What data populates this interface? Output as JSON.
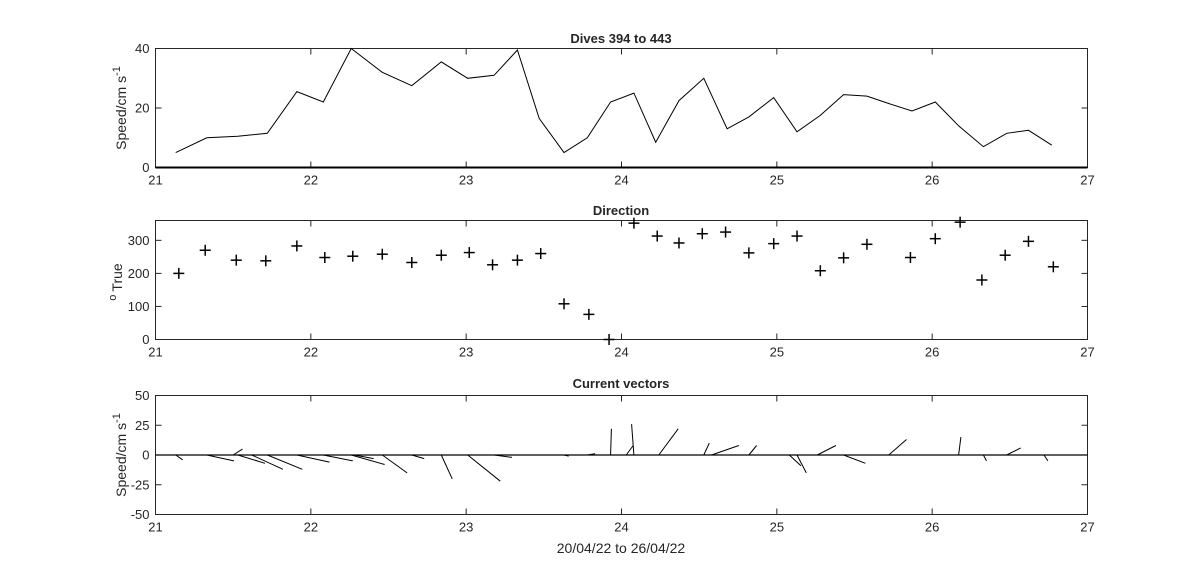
{
  "chart_data": [
    {
      "type": "line",
      "title": "Dives 394 to 443",
      "ylabel": "Speed/cm s",
      "ylabel_superscript": "-1",
      "xlim": [
        21,
        27
      ],
      "ylim": [
        0,
        40
      ],
      "xticks": [
        21,
        22,
        23,
        24,
        25,
        26,
        27
      ],
      "yticks": [
        0,
        20,
        40
      ],
      "x": [
        21.13,
        21.33,
        21.53,
        21.72,
        21.91,
        22.08,
        22.26,
        22.46,
        22.65,
        22.84,
        23.01,
        23.18,
        23.33,
        23.47,
        23.63,
        23.78,
        23.93,
        24.08,
        24.22,
        24.37,
        24.53,
        24.68,
        24.82,
        24.98,
        25.13,
        25.28,
        25.43,
        25.58,
        25.72,
        25.87,
        26.02,
        26.17,
        26.33,
        26.48,
        26.62,
        26.77
      ],
      "series": [
        {
          "values": [
            5,
            10,
            10.5,
            11.5,
            25.5,
            22,
            41,
            32,
            27.5,
            35.5,
            30,
            31,
            39.5,
            16.5,
            5,
            10,
            22,
            25,
            8.5,
            22.5,
            30,
            13,
            17,
            23.5,
            12,
            17.5,
            24.5,
            24,
            21.5,
            19,
            22,
            14,
            7,
            11.5,
            12.5,
            7.5
          ]
        }
      ]
    },
    {
      "type": "scatter",
      "title": "Direction",
      "ylabel": "True",
      "ylabel_prefix": "o",
      "xlim": [
        21,
        27
      ],
      "ylim": [
        0,
        360
      ],
      "xticks": [
        21,
        22,
        23,
        24,
        25,
        26,
        27
      ],
      "yticks": [
        0,
        100,
        200,
        300
      ],
      "marker": "+",
      "x": [
        21.15,
        21.32,
        21.52,
        21.71,
        21.91,
        22.09,
        22.27,
        22.46,
        22.65,
        22.84,
        23.02,
        23.17,
        23.33,
        23.48,
        23.63,
        23.79,
        23.92,
        24.08,
        24.23,
        24.37,
        24.52,
        24.67,
        24.82,
        24.98,
        25.13,
        25.28,
        25.43,
        25.58,
        25.86,
        26.02,
        26.18,
        26.32,
        26.47,
        26.62,
        26.78
      ],
      "series": [
        {
          "values": [
            200,
            270,
            240,
            238,
            283,
            248,
            252,
            258,
            233,
            255,
            263,
            226,
            240,
            260,
            108,
            76,
            0,
            352,
            313,
            292,
            320,
            325,
            262,
            290,
            313,
            208,
            247,
            288,
            248,
            305,
            355,
            180,
            255,
            297,
            220
          ]
        }
      ]
    },
    {
      "type": "quiver",
      "title": "Current vectors",
      "ylabel": "Speed/cm s",
      "ylabel_superscript": "-1",
      "xlabel": "20/04/22 to 26/04/22",
      "xlim": [
        21,
        27
      ],
      "ylim": [
        -50,
        50
      ],
      "xticks": [
        21,
        22,
        23,
        24,
        25,
        26,
        27
      ],
      "yticks": [
        -50,
        -25,
        0,
        25,
        50
      ],
      "vectors": [
        {
          "x": 21.13,
          "u": 0.9,
          "v": -4
        },
        {
          "x": 21.33,
          "u": 3.5,
          "v": -5
        },
        {
          "x": 21.5,
          "u": 1.2,
          "v": 5
        },
        {
          "x": 21.53,
          "u": 3.5,
          "v": -7
        },
        {
          "x": 21.62,
          "u": 4,
          "v": -12
        },
        {
          "x": 21.72,
          "u": 4.5,
          "v": -12
        },
        {
          "x": 21.91,
          "u": 4.2,
          "v": -6
        },
        {
          "x": 22.08,
          "u": 3.8,
          "v": -5
        },
        {
          "x": 22.26,
          "u": 4.3,
          "v": -8
        },
        {
          "x": 22.28,
          "u": 2.5,
          "v": -3
        },
        {
          "x": 22.46,
          "u": 3.2,
          "v": -15
        },
        {
          "x": 22.65,
          "u": 1.6,
          "v": -3
        },
        {
          "x": 22.84,
          "u": 1.4,
          "v": -20
        },
        {
          "x": 23.01,
          "u": 4.2,
          "v": -22
        },
        {
          "x": 23.18,
          "u": 2.3,
          "v": -2
        },
        {
          "x": 23.33,
          "u": 1.5,
          "v": 0
        },
        {
          "x": 23.63,
          "u": 0.6,
          "v": -1
        },
        {
          "x": 23.78,
          "u": 1,
          "v": 1
        },
        {
          "x": 23.93,
          "u": 0.1,
          "v": 22
        },
        {
          "x": 24.03,
          "u": 0.9,
          "v": 8
        },
        {
          "x": 24.08,
          "u": -0.3,
          "v": 26
        },
        {
          "x": 24.22,
          "u": 0.6,
          "v": 0
        },
        {
          "x": 24.24,
          "u": 2.5,
          "v": 22
        },
        {
          "x": 24.53,
          "u": 0.7,
          "v": 10
        },
        {
          "x": 24.58,
          "u": 3.5,
          "v": 8
        },
        {
          "x": 24.82,
          "u": 1,
          "v": 8
        },
        {
          "x": 25.08,
          "u": 1.5,
          "v": -9
        },
        {
          "x": 25.13,
          "u": 1.2,
          "v": -15
        },
        {
          "x": 25.26,
          "u": 2.4,
          "v": 8
        },
        {
          "x": 25.43,
          "u": 2.8,
          "v": -7
        },
        {
          "x": 25.72,
          "u": 2.3,
          "v": 13
        },
        {
          "x": 26.17,
          "u": 0.3,
          "v": 15
        },
        {
          "x": 26.33,
          "u": 0.4,
          "v": -5
        },
        {
          "x": 26.48,
          "u": 1.8,
          "v": 6
        },
        {
          "x": 26.72,
          "u": 0.5,
          "v": -5
        }
      ]
    }
  ]
}
